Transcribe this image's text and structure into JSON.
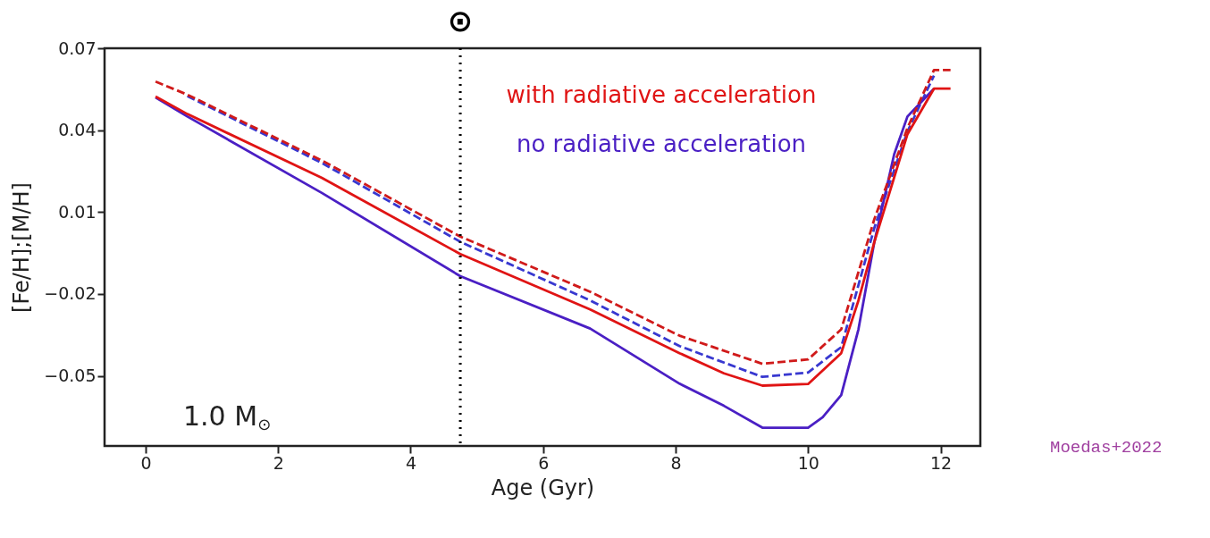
{
  "chart_data": {
    "type": "line",
    "xlabel": "Age (Gyr)",
    "ylabel": "[Fe/H];[M/H]",
    "xlim": [
      -0.62,
      12.6
    ],
    "ylim": [
      -0.0757,
      0.07
    ],
    "xticks": [
      0,
      2,
      4,
      6,
      8,
      10,
      12
    ],
    "yticks": [
      0.07,
      0.04,
      0.01,
      {
        "value": -0.02,
        "label": "−0.02"
      },
      {
        "value": -0.05,
        "label": "−0.05"
      }
    ],
    "grid": false,
    "legend": "top",
    "marker": "none",
    "series": [
      {
        "name": "with radiative acceleration",
        "color": "#e01414",
        "line_style": "solid",
        "x": [
          0.15,
          0.63,
          2.66,
          4.75,
          6.71,
          8.06,
          8.73,
          9.31,
          10.0,
          10.5,
          10.76,
          11.0,
          11.5,
          11.9,
          12.15
        ],
        "values": [
          0.0523,
          0.0459,
          0.0225,
          -0.0054,
          -0.0257,
          -0.0417,
          -0.0491,
          -0.0536,
          -0.053,
          -0.0417,
          -0.0224,
          -0.001,
          0.0385,
          0.0552,
          0.0552
        ]
      },
      {
        "color": "#d01a1a",
        "line_style": "dashed",
        "x": [
          0.15,
          0.63,
          2.66,
          4.75,
          6.71,
          8.06,
          9.31,
          10.0,
          10.5,
          11.0,
          11.5,
          11.9,
          12.15
        ],
        "values": [
          0.0578,
          0.053,
          0.0289,
          0.001,
          -0.0192,
          -0.0353,
          -0.0456,
          -0.044,
          -0.033,
          0.0074,
          0.0408,
          0.062,
          0.062
        ]
      },
      {
        "name": "no radiative acceleration",
        "color": "#4a1fc4",
        "line_style": "solid",
        "x": [
          0.15,
          0.63,
          2.66,
          4.75,
          6.71,
          8.06,
          8.73,
          9.31,
          10.0,
          10.22,
          10.5,
          10.76,
          11.0,
          11.3,
          11.5,
          11.9
        ],
        "values": [
          0.052,
          0.045,
          0.017,
          -0.0135,
          -0.0327,
          -0.0529,
          -0.061,
          -0.069,
          -0.069,
          -0.0652,
          -0.0571,
          -0.033,
          -0.001,
          0.0312,
          0.045,
          0.0552
        ]
      },
      {
        "color": "#3838d0",
        "line_style": "dashed",
        "x": [
          0.63,
          2.66,
          4.75,
          6.71,
          8.06,
          9.31,
          10.0,
          10.5,
          11.0,
          11.5,
          11.9
        ],
        "values": [
          0.0525,
          0.028,
          -0.0009,
          -0.0224,
          -0.0391,
          -0.0504,
          -0.0488,
          -0.0395,
          0.0042,
          0.0395,
          0.06
        ]
      }
    ],
    "ref_lines": [
      {
        "axis": "x",
        "value": 4.75,
        "label": "⊙",
        "color": "#000000",
        "line_style": "dotted"
      }
    ],
    "annotations": [
      "1.0 M$_{⊙}$",
      "Moedas+2022"
    ]
  }
}
